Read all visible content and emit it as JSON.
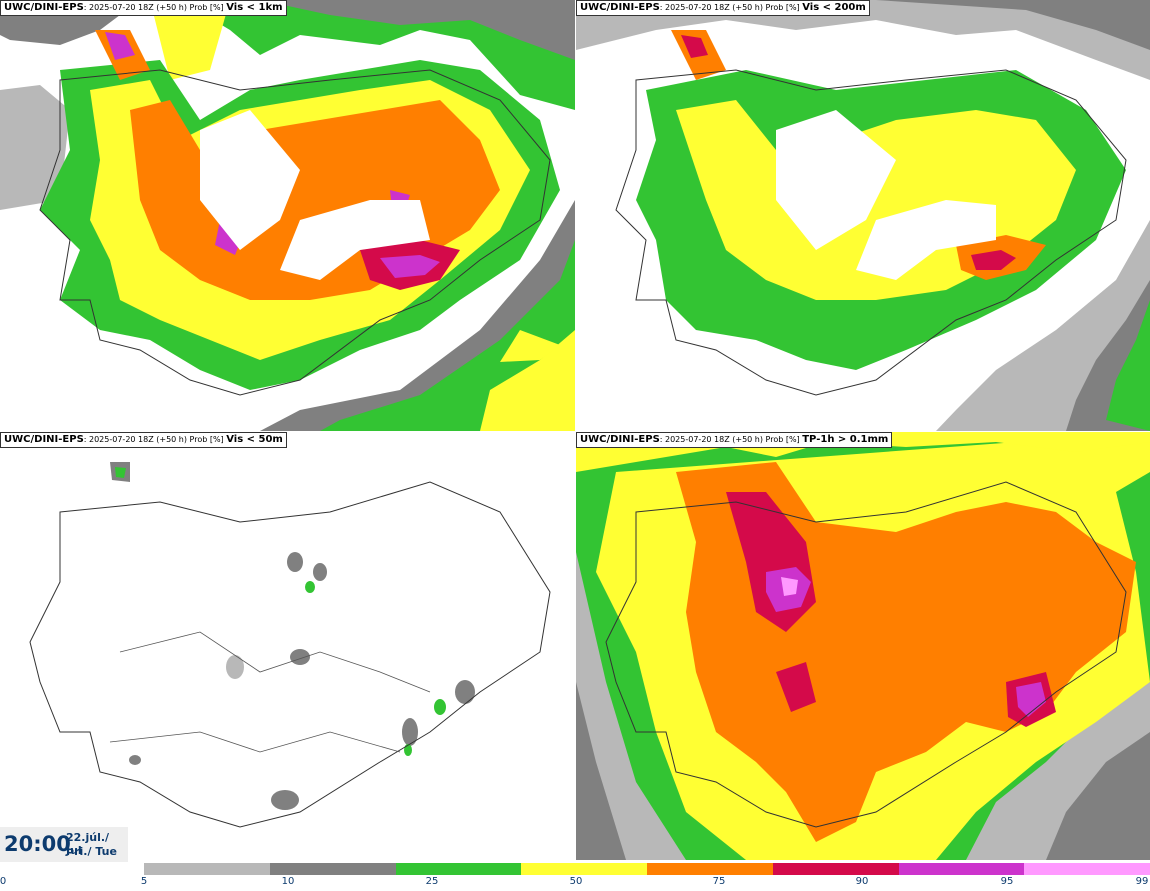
{
  "panels": [
    {
      "id": "p1",
      "model": "UWC/DINI-EPS",
      "meta": ": 2025-07-20 18Z (+50 h) Prob [%] ",
      "variable": "Vis < 1km"
    },
    {
      "id": "p2",
      "model": "UWC/DINI-EPS",
      "meta": ": 2025-07-20 18Z (+50 h) Prob [%] ",
      "variable": "Vis < 200m"
    },
    {
      "id": "p3",
      "model": "UWC/DINI-EPS",
      "meta": ": 2025-07-20 18Z (+50 h) Prob [%] ",
      "variable": "Vis < 50m"
    },
    {
      "id": "p4",
      "model": "UWC/DINI-EPS",
      "meta": ": 2025-07-20 18Z (+50 h) Prob [%] ",
      "variable": "TP-1h > 0.1mm"
    }
  ],
  "valid_time": {
    "time": "20:00",
    "date_line1": "22.júl./ Jul",
    "date_line2": "Þri./ Tue"
  },
  "legend": {
    "ticks": [
      "0",
      "5",
      "10",
      "25",
      "50",
      "75",
      "90",
      "95",
      "99"
    ],
    "colors": [
      "#b8b8b8",
      "#808080",
      "#33c433",
      "#ffff33",
      "#ff7f00",
      "#d40a4a",
      "#cc33cc",
      "#ff99ff"
    ]
  }
}
